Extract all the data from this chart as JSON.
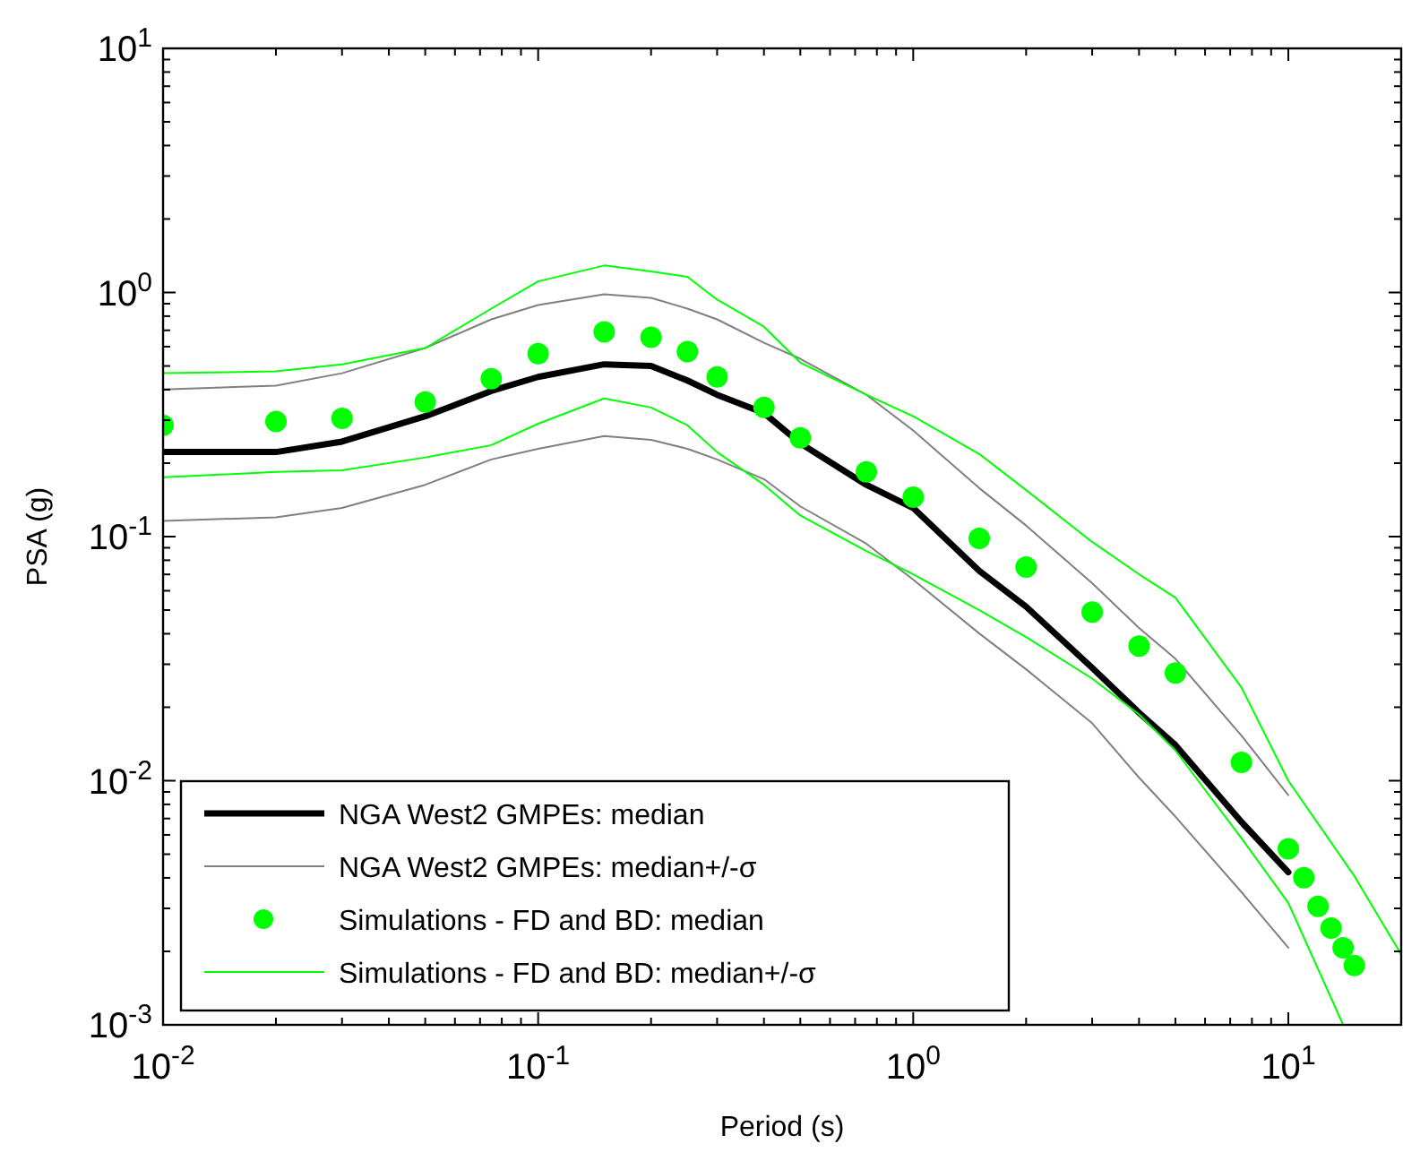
{
  "chart_data": {
    "type": "line",
    "xlabel": "Period (s)",
    "ylabel": "PSA (g)",
    "log": "xy",
    "legend": "bottom left",
    "xlim": [
      0.01,
      20
    ],
    "ylim": [
      0.001,
      10
    ],
    "xticks": [
      {
        "value": 0.01,
        "label": "10$^{-2}$"
      },
      {
        "value": 0.02,
        "label": null
      },
      {
        "value": 0.03,
        "label": null
      },
      {
        "value": 0.04,
        "label": null
      },
      {
        "value": 0.05,
        "label": null
      },
      {
        "value": 0.06,
        "label": null
      },
      {
        "value": 0.07,
        "label": null
      },
      {
        "value": 0.08,
        "label": null
      },
      {
        "value": 0.09,
        "label": null
      },
      {
        "value": 0.1,
        "label": "10$^{-1}$"
      },
      {
        "value": 0.2,
        "label": null
      },
      {
        "value": 0.3,
        "label": null
      },
      {
        "value": 0.4,
        "label": null
      },
      {
        "value": 0.5,
        "label": null
      },
      {
        "value": 0.6,
        "label": null
      },
      {
        "value": 0.7,
        "label": null
      },
      {
        "value": 0.8,
        "label": null
      },
      {
        "value": 0.9,
        "label": null
      },
      {
        "value": 1,
        "label": "10$^{0}$"
      },
      {
        "value": 2,
        "label": null
      },
      {
        "value": 3,
        "label": null
      },
      {
        "value": 4,
        "label": null
      },
      {
        "value": 5,
        "label": null
      },
      {
        "value": 6,
        "label": null
      },
      {
        "value": 7,
        "label": null
      },
      {
        "value": 8,
        "label": null
      },
      {
        "value": 9,
        "label": null
      },
      {
        "value": 10,
        "label": "10$^{1}$"
      }
    ],
    "yticks": [
      {
        "value": 0.001,
        "label": "10$^{-3}$"
      },
      {
        "value": 0.002,
        "label": null
      },
      {
        "value": 0.003,
        "label": null
      },
      {
        "value": 0.004,
        "label": null
      },
      {
        "value": 0.005,
        "label": null
      },
      {
        "value": 0.006,
        "label": null
      },
      {
        "value": 0.007,
        "label": null
      },
      {
        "value": 0.008,
        "label": null
      },
      {
        "value": 0.009,
        "label": null
      },
      {
        "value": 0.01,
        "label": "10$^{-2}$"
      },
      {
        "value": 0.02,
        "label": null
      },
      {
        "value": 0.03,
        "label": null
      },
      {
        "value": 0.04,
        "label": null
      },
      {
        "value": 0.05,
        "label": null
      },
      {
        "value": 0.06,
        "label": null
      },
      {
        "value": 0.07,
        "label": null
      },
      {
        "value": 0.08,
        "label": null
      },
      {
        "value": 0.09,
        "label": null
      },
      {
        "value": 0.1,
        "label": "10$^{-1}$"
      },
      {
        "value": 0.2,
        "label": null
      },
      {
        "value": 0.3,
        "label": null
      },
      {
        "value": 0.4,
        "label": null
      },
      {
        "value": 0.5,
        "label": null
      },
      {
        "value": 0.6,
        "label": null
      },
      {
        "value": 0.7,
        "label": null
      },
      {
        "value": 0.8,
        "label": null
      },
      {
        "value": 0.9,
        "label": null
      },
      {
        "value": 1,
        "label": "10$^{0}$"
      },
      {
        "value": 2,
        "label": null
      },
      {
        "value": 3,
        "label": null
      },
      {
        "value": 4,
        "label": null
      },
      {
        "value": 5,
        "label": null
      },
      {
        "value": 6,
        "label": null
      },
      {
        "value": 7,
        "label": null
      },
      {
        "value": 8,
        "label": null
      },
      {
        "value": 9,
        "label": null
      },
      {
        "value": 10,
        "label": "10$^{1}$"
      }
    ],
    "series": [
      {
        "name": "NGA West2 GMPEs: median",
        "color": "#000000",
        "x": [
          0.01,
          0.02,
          0.03,
          0.05,
          0.075,
          0.1,
          0.15,
          0.2,
          0.25,
          0.3,
          0.4,
          0.5,
          0.75,
          1,
          1.5,
          2,
          3,
          4,
          5,
          7.5,
          10
        ],
        "values": [
          0.222,
          0.222,
          0.245,
          0.311,
          0.395,
          0.451,
          0.508,
          0.5,
          0.436,
          0.381,
          0.321,
          0.241,
          0.163,
          0.131,
          0.0724,
          0.0516,
          0.029,
          0.019,
          0.014,
          0.00678,
          0.00422
        ]
      },
      {
        "name": "NGA West2 GMPEs: median+/-σ",
        "color": "#808080",
        "x": [
          0.01,
          0.02,
          0.03,
          0.05,
          0.075,
          0.1,
          0.15,
          0.2,
          0.25,
          0.3,
          0.4,
          0.5,
          0.75,
          1,
          1.5,
          2,
          3,
          4,
          5,
          7.5,
          10
        ],
        "values": [
          0.401,
          0.415,
          0.467,
          0.592,
          0.776,
          0.889,
          0.984,
          0.951,
          0.859,
          0.776,
          0.622,
          0.535,
          0.381,
          0.272,
          0.158,
          0.111,
          0.0644,
          0.0422,
          0.0316,
          0.0153,
          0.00873
        ]
      },
      {
        "color": "#808080",
        "x": [
          0.01,
          0.02,
          0.03,
          0.05,
          0.075,
          0.1,
          0.15,
          0.2,
          0.25,
          0.3,
          0.4,
          0.5,
          0.75,
          1,
          1.5,
          2,
          3,
          4,
          5,
          7.5,
          10
        ],
        "values": [
          0.116,
          0.12,
          0.131,
          0.163,
          0.207,
          0.229,
          0.258,
          0.249,
          0.229,
          0.207,
          0.172,
          0.133,
          0.0935,
          0.0667,
          0.0401,
          0.0286,
          0.0172,
          0.0103,
          0.00713,
          0.0035,
          0.00207
        ]
      },
      {
        "name": "Simulations - FD and BD: median",
        "type": "scatter",
        "marker": "circle",
        "color": "#00ff00",
        "x": [
          0.01,
          0.02,
          0.03,
          0.05,
          0.075,
          0.1,
          0.15,
          0.2,
          0.25,
          0.3,
          0.4,
          0.5,
          0.75,
          1,
          1.5,
          2,
          3,
          4,
          5,
          7.5,
          10,
          11,
          12,
          13,
          14,
          15
        ],
        "values": [
          0.286,
          0.296,
          0.305,
          0.356,
          0.443,
          0.562,
          0.689,
          0.655,
          0.572,
          0.451,
          0.338,
          0.254,
          0.184,
          0.145,
          0.0984,
          0.075,
          0.0491,
          0.0356,
          0.0276,
          0.0119,
          0.00526,
          0.00401,
          0.00306,
          0.00249,
          0.00207,
          0.00175
        ]
      },
      {
        "name": "Simulations - FD and BD: median+/-σ",
        "color": "#00ff00",
        "x": [
          0.01,
          0.02,
          0.03,
          0.05,
          0.075,
          0.1,
          0.15,
          0.2,
          0.25,
          0.3,
          0.4,
          0.5,
          0.75,
          1,
          1.5,
          2,
          3,
          4,
          5,
          7.5,
          10,
          15,
          20
        ],
        "values": [
          0.467,
          0.475,
          0.508,
          0.592,
          0.859,
          1.11,
          1.29,
          1.22,
          1.16,
          0.935,
          0.724,
          0.516,
          0.381,
          0.311,
          0.218,
          0.155,
          0.0951,
          0.0701,
          0.0562,
          0.0241,
          0.01,
          0.00407,
          0.00194
        ]
      },
      {
        "color": "#00ff00",
        "x": [
          0.01,
          0.02,
          0.03,
          0.05,
          0.075,
          0.1,
          0.15,
          0.2,
          0.25,
          0.3,
          0.4,
          0.5,
          0.75,
          1,
          1.5,
          2,
          3,
          4,
          5,
          7.5,
          10,
          14
        ],
        "values": [
          0.175,
          0.184,
          0.187,
          0.211,
          0.237,
          0.29,
          0.368,
          0.338,
          0.286,
          0.222,
          0.163,
          0.122,
          0.0873,
          0.0701,
          0.05,
          0.0388,
          0.0262,
          0.0187,
          0.0133,
          0.00582,
          0.00316,
          0.001
        ]
      }
    ]
  }
}
